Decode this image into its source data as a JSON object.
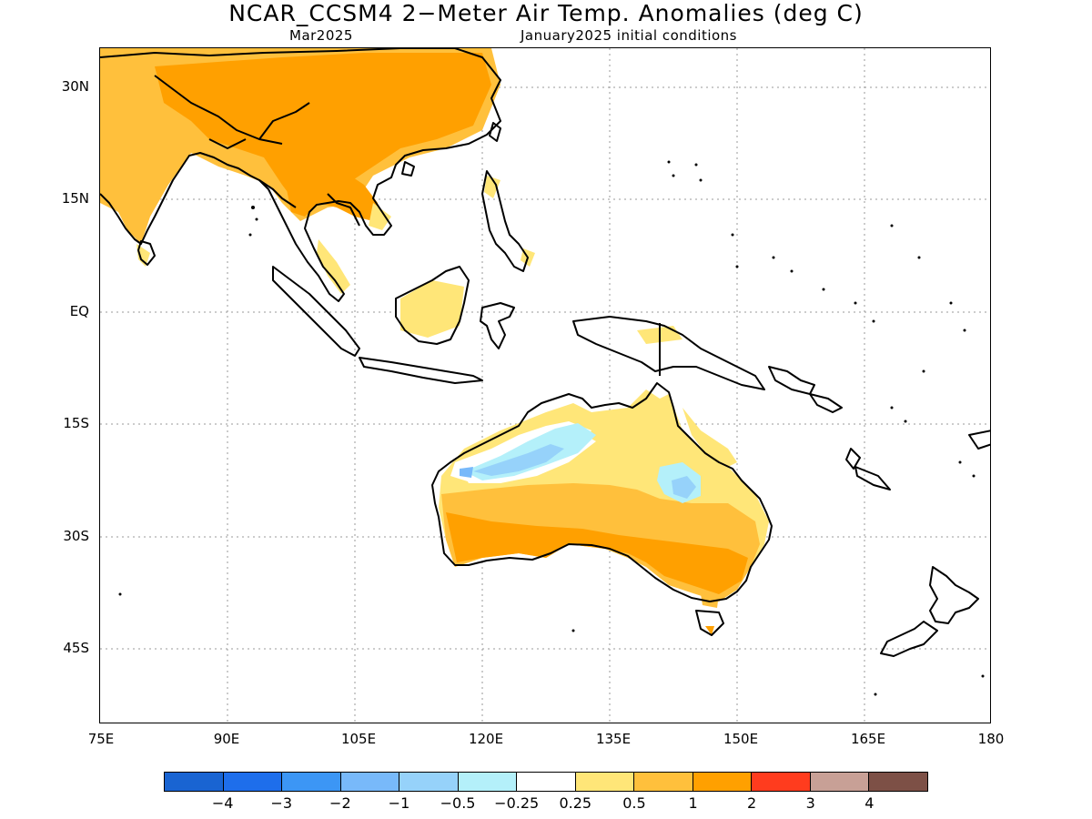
{
  "title": "NCAR_CCSM4 2−Meter Air Temp. Anomalies (deg C)",
  "subtitle_left": "Mar2025",
  "subtitle_right": "January2025 initial conditions",
  "map": {
    "lat_labels": [
      "30N",
      "15N",
      "EQ",
      "15S",
      "30S",
      "45S"
    ],
    "lon_labels": [
      "75E",
      "90E",
      "105E",
      "120E",
      "135E",
      "150E",
      "165E",
      "180"
    ],
    "lon_range": [
      75,
      180
    ],
    "lat_range": [
      -55,
      35
    ],
    "grid": "dotted"
  },
  "legend": {
    "colors": [
      "#1964d2",
      "#1e6eeb",
      "#3c96f5",
      "#78b9fa",
      "#96d2fa",
      "#b4f0fa",
      "#ffffff",
      "#ffe678",
      "#ffc03c",
      "#ffa000",
      "#ff3c1e",
      "#c8a096",
      "#7d5046"
    ],
    "labels": [
      "−4",
      "−3",
      "−2",
      "−1",
      "−0.5",
      "−0.25",
      "0.25",
      "0.5",
      "1",
      "2",
      "3",
      "4"
    ]
  }
}
